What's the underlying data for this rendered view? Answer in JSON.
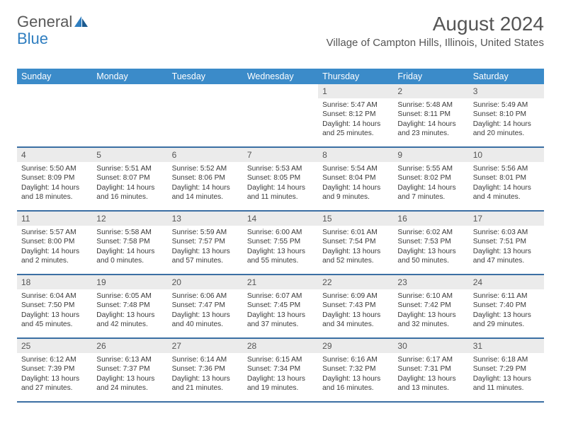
{
  "logo": {
    "text1": "General",
    "text2": "Blue"
  },
  "title": "August 2024",
  "location": "Village of Campton Hills, Illinois, United States",
  "colors": {
    "header_bg": "#3b8bc9",
    "header_text": "#ffffff",
    "daynum_bg": "#ebebeb",
    "week_border": "#3b6fa3",
    "title_color": "#555555",
    "body_text": "#3a3a3a",
    "logo_gray": "#585858",
    "logo_blue": "#2f7ec0"
  },
  "day_names": [
    "Sunday",
    "Monday",
    "Tuesday",
    "Wednesday",
    "Thursday",
    "Friday",
    "Saturday"
  ],
  "weeks": [
    [
      {
        "day": null
      },
      {
        "day": null
      },
      {
        "day": null
      },
      {
        "day": null
      },
      {
        "day": "1",
        "sunrise": "Sunrise: 5:47 AM",
        "sunset": "Sunset: 8:12 PM",
        "daylight": "Daylight: 14 hours and 25 minutes."
      },
      {
        "day": "2",
        "sunrise": "Sunrise: 5:48 AM",
        "sunset": "Sunset: 8:11 PM",
        "daylight": "Daylight: 14 hours and 23 minutes."
      },
      {
        "day": "3",
        "sunrise": "Sunrise: 5:49 AM",
        "sunset": "Sunset: 8:10 PM",
        "daylight": "Daylight: 14 hours and 20 minutes."
      }
    ],
    [
      {
        "day": "4",
        "sunrise": "Sunrise: 5:50 AM",
        "sunset": "Sunset: 8:09 PM",
        "daylight": "Daylight: 14 hours and 18 minutes."
      },
      {
        "day": "5",
        "sunrise": "Sunrise: 5:51 AM",
        "sunset": "Sunset: 8:07 PM",
        "daylight": "Daylight: 14 hours and 16 minutes."
      },
      {
        "day": "6",
        "sunrise": "Sunrise: 5:52 AM",
        "sunset": "Sunset: 8:06 PM",
        "daylight": "Daylight: 14 hours and 14 minutes."
      },
      {
        "day": "7",
        "sunrise": "Sunrise: 5:53 AM",
        "sunset": "Sunset: 8:05 PM",
        "daylight": "Daylight: 14 hours and 11 minutes."
      },
      {
        "day": "8",
        "sunrise": "Sunrise: 5:54 AM",
        "sunset": "Sunset: 8:04 PM",
        "daylight": "Daylight: 14 hours and 9 minutes."
      },
      {
        "day": "9",
        "sunrise": "Sunrise: 5:55 AM",
        "sunset": "Sunset: 8:02 PM",
        "daylight": "Daylight: 14 hours and 7 minutes."
      },
      {
        "day": "10",
        "sunrise": "Sunrise: 5:56 AM",
        "sunset": "Sunset: 8:01 PM",
        "daylight": "Daylight: 14 hours and 4 minutes."
      }
    ],
    [
      {
        "day": "11",
        "sunrise": "Sunrise: 5:57 AM",
        "sunset": "Sunset: 8:00 PM",
        "daylight": "Daylight: 14 hours and 2 minutes."
      },
      {
        "day": "12",
        "sunrise": "Sunrise: 5:58 AM",
        "sunset": "Sunset: 7:58 PM",
        "daylight": "Daylight: 14 hours and 0 minutes."
      },
      {
        "day": "13",
        "sunrise": "Sunrise: 5:59 AM",
        "sunset": "Sunset: 7:57 PM",
        "daylight": "Daylight: 13 hours and 57 minutes."
      },
      {
        "day": "14",
        "sunrise": "Sunrise: 6:00 AM",
        "sunset": "Sunset: 7:55 PM",
        "daylight": "Daylight: 13 hours and 55 minutes."
      },
      {
        "day": "15",
        "sunrise": "Sunrise: 6:01 AM",
        "sunset": "Sunset: 7:54 PM",
        "daylight": "Daylight: 13 hours and 52 minutes."
      },
      {
        "day": "16",
        "sunrise": "Sunrise: 6:02 AM",
        "sunset": "Sunset: 7:53 PM",
        "daylight": "Daylight: 13 hours and 50 minutes."
      },
      {
        "day": "17",
        "sunrise": "Sunrise: 6:03 AM",
        "sunset": "Sunset: 7:51 PM",
        "daylight": "Daylight: 13 hours and 47 minutes."
      }
    ],
    [
      {
        "day": "18",
        "sunrise": "Sunrise: 6:04 AM",
        "sunset": "Sunset: 7:50 PM",
        "daylight": "Daylight: 13 hours and 45 minutes."
      },
      {
        "day": "19",
        "sunrise": "Sunrise: 6:05 AM",
        "sunset": "Sunset: 7:48 PM",
        "daylight": "Daylight: 13 hours and 42 minutes."
      },
      {
        "day": "20",
        "sunrise": "Sunrise: 6:06 AM",
        "sunset": "Sunset: 7:47 PM",
        "daylight": "Daylight: 13 hours and 40 minutes."
      },
      {
        "day": "21",
        "sunrise": "Sunrise: 6:07 AM",
        "sunset": "Sunset: 7:45 PM",
        "daylight": "Daylight: 13 hours and 37 minutes."
      },
      {
        "day": "22",
        "sunrise": "Sunrise: 6:09 AM",
        "sunset": "Sunset: 7:43 PM",
        "daylight": "Daylight: 13 hours and 34 minutes."
      },
      {
        "day": "23",
        "sunrise": "Sunrise: 6:10 AM",
        "sunset": "Sunset: 7:42 PM",
        "daylight": "Daylight: 13 hours and 32 minutes."
      },
      {
        "day": "24",
        "sunrise": "Sunrise: 6:11 AM",
        "sunset": "Sunset: 7:40 PM",
        "daylight": "Daylight: 13 hours and 29 minutes."
      }
    ],
    [
      {
        "day": "25",
        "sunrise": "Sunrise: 6:12 AM",
        "sunset": "Sunset: 7:39 PM",
        "daylight": "Daylight: 13 hours and 27 minutes."
      },
      {
        "day": "26",
        "sunrise": "Sunrise: 6:13 AM",
        "sunset": "Sunset: 7:37 PM",
        "daylight": "Daylight: 13 hours and 24 minutes."
      },
      {
        "day": "27",
        "sunrise": "Sunrise: 6:14 AM",
        "sunset": "Sunset: 7:36 PM",
        "daylight": "Daylight: 13 hours and 21 minutes."
      },
      {
        "day": "28",
        "sunrise": "Sunrise: 6:15 AM",
        "sunset": "Sunset: 7:34 PM",
        "daylight": "Daylight: 13 hours and 19 minutes."
      },
      {
        "day": "29",
        "sunrise": "Sunrise: 6:16 AM",
        "sunset": "Sunset: 7:32 PM",
        "daylight": "Daylight: 13 hours and 16 minutes."
      },
      {
        "day": "30",
        "sunrise": "Sunrise: 6:17 AM",
        "sunset": "Sunset: 7:31 PM",
        "daylight": "Daylight: 13 hours and 13 minutes."
      },
      {
        "day": "31",
        "sunrise": "Sunrise: 6:18 AM",
        "sunset": "Sunset: 7:29 PM",
        "daylight": "Daylight: 13 hours and 11 minutes."
      }
    ]
  ]
}
